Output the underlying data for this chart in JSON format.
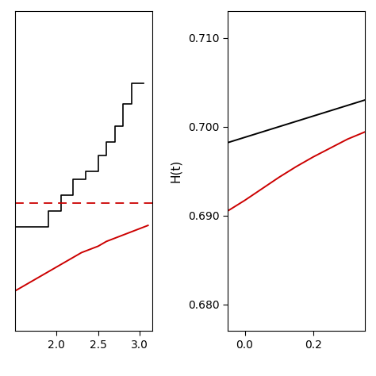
{
  "panel1": {
    "xlim": [
      1.5,
      3.15
    ],
    "ylim": [
      0.55,
      0.75
    ],
    "xticks": [
      2.0,
      2.5,
      3.0
    ],
    "step_x": [
      1.5,
      1.75,
      1.75,
      1.9,
      1.9,
      2.05,
      2.05,
      2.2,
      2.2,
      2.35,
      2.35,
      2.5,
      2.5,
      2.6,
      2.6,
      2.7,
      2.7,
      2.8,
      2.8,
      2.9,
      2.9,
      3.05
    ],
    "step_y": [
      0.615,
      0.615,
      0.615,
      0.615,
      0.625,
      0.625,
      0.635,
      0.635,
      0.645,
      0.645,
      0.65,
      0.65,
      0.66,
      0.66,
      0.668,
      0.668,
      0.678,
      0.678,
      0.692,
      0.692,
      0.705,
      0.705
    ],
    "smooth_x": [
      1.5,
      1.6,
      1.7,
      1.8,
      1.9,
      2.0,
      2.1,
      2.2,
      2.3,
      2.4,
      2.5,
      2.6,
      2.7,
      2.8,
      2.9,
      3.0,
      3.1
    ],
    "smooth_y": [
      0.575,
      0.578,
      0.581,
      0.584,
      0.587,
      0.59,
      0.593,
      0.596,
      0.599,
      0.601,
      0.603,
      0.606,
      0.608,
      0.61,
      0.612,
      0.614,
      0.616
    ],
    "hline_y": 0.63,
    "background": "#ffffff"
  },
  "panel2": {
    "xlim": [
      -0.05,
      0.35
    ],
    "ylim": [
      0.677,
      0.713
    ],
    "xticks": [
      0.0,
      0.2
    ],
    "yticks": [
      0.68,
      0.69,
      0.7,
      0.71
    ],
    "ylabel": "H(t)",
    "black_x": [
      -0.05,
      0.0,
      0.05,
      0.1,
      0.15,
      0.2,
      0.25,
      0.3,
      0.35
    ],
    "black_y": [
      0.6982,
      0.6988,
      0.6994,
      0.7,
      0.7006,
      0.7012,
      0.7018,
      0.7024,
      0.703
    ],
    "red_x": [
      -0.05,
      0.0,
      0.05,
      0.1,
      0.15,
      0.2,
      0.25,
      0.3,
      0.35
    ],
    "red_y": [
      0.6905,
      0.6917,
      0.693,
      0.6943,
      0.6955,
      0.6966,
      0.6976,
      0.6986,
      0.6994
    ],
    "background": "#ffffff"
  },
  "line_color_black": "#000000",
  "line_color_red": "#cc0000",
  "font_size_tick": 10,
  "font_size_label": 11
}
